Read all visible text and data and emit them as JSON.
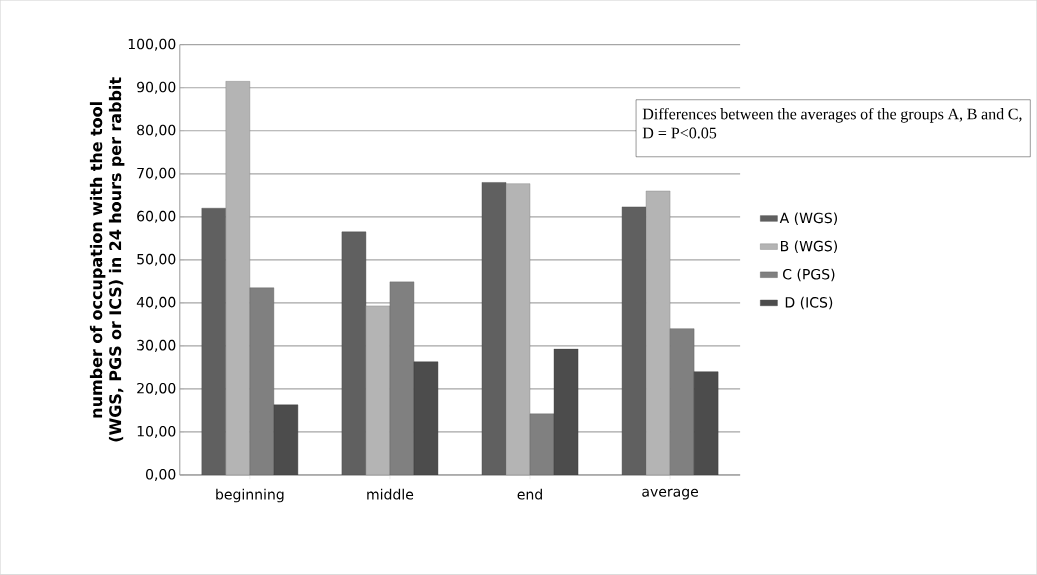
{
  "chart_data": {
    "type": "bar",
    "ylabel": "number of occupation with the tool (WGS, PGS or ICS) in 24 hours per rabbit",
    "categories": [
      "beginning",
      "middle",
      "end",
      "average"
    ],
    "series": [
      {
        "name": "A (WGS)",
        "color": "#606060",
        "values": [
          62,
          56.5,
          68,
          62.3
        ]
      },
      {
        "name": "B (WGS)",
        "color": "#b4b4b4",
        "values": [
          91.5,
          39.3,
          67.7,
          66
        ]
      },
      {
        "name": "C (PGS)",
        "color": "#808080",
        "values": [
          43.5,
          44.9,
          14.2,
          34
        ]
      },
      {
        "name": "D (ICS)",
        "color": "#4c4c4c",
        "values": [
          16.3,
          26.3,
          29.3,
          24
        ]
      }
    ],
    "ylim": [
      0,
      100
    ],
    "yticks": [
      {
        "value": 0,
        "label": "0,00"
      },
      {
        "value": 10,
        "label": "10,00"
      },
      {
        "value": 20,
        "label": "20,00"
      },
      {
        "value": 30,
        "label": "30,00"
      },
      {
        "value": 40,
        "label": "40,00"
      },
      {
        "value": 50,
        "label": "50,00"
      },
      {
        "value": 60,
        "label": "60,00"
      },
      {
        "value": 70,
        "label": "70,00"
      },
      {
        "value": 80,
        "label": "80,00"
      },
      {
        "value": 90,
        "label": "90,00"
      },
      {
        "value": 100,
        "label": "100,00"
      }
    ],
    "grid": "y",
    "legend": "right",
    "annotations": [
      "Differences between the averages of the groups A, B and C, D = P<0.05"
    ]
  }
}
